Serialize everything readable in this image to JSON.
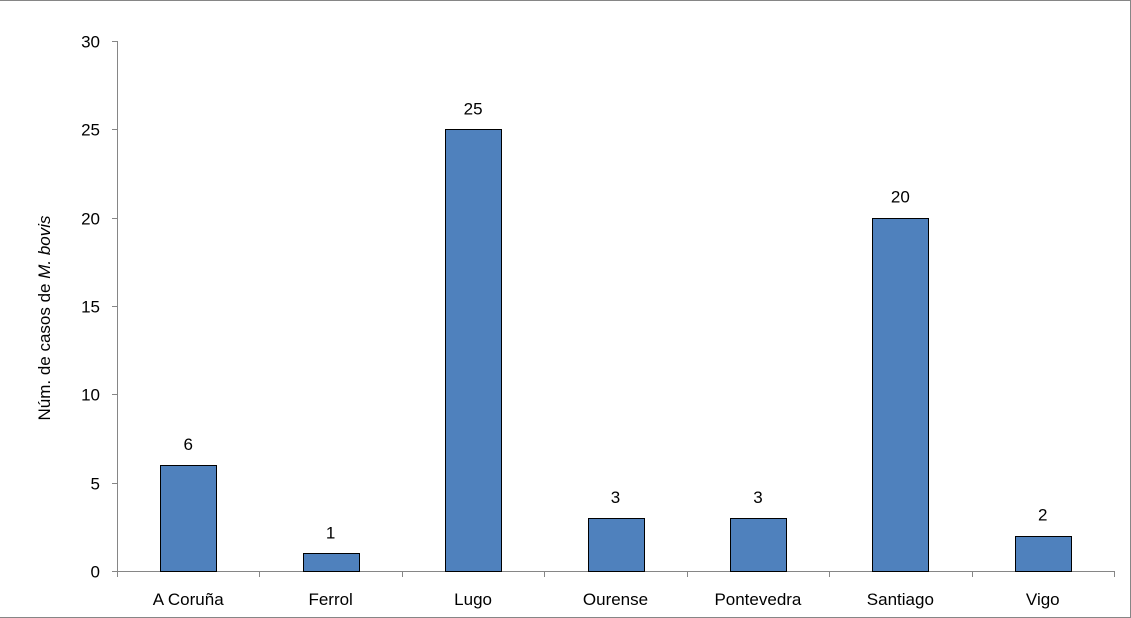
{
  "chart_data": {
    "type": "bar",
    "categories": [
      "A Coruña",
      "Ferrol",
      "Lugo",
      "Ourense",
      "Pontevedra",
      "Santiago",
      "Vigo"
    ],
    "values": [
      6,
      1,
      25,
      3,
      3,
      20,
      2
    ],
    "data_labels": [
      "6",
      "1",
      "25",
      "3",
      "3",
      "20",
      "2"
    ],
    "title": "",
    "xlabel": "",
    "ylabel": {
      "prefix": "Núm. de casos de ",
      "italic": "M. bovis"
    },
    "ylim": [
      0,
      30
    ],
    "yticks": [
      0,
      5,
      10,
      15,
      20,
      25,
      30
    ],
    "ytick_labels": [
      "0",
      "5",
      "10",
      "15",
      "20",
      "25",
      "30"
    ],
    "grid": false,
    "legend": "none",
    "bar_color": "#4f81bd",
    "bar_edge_color": "#000000",
    "axis_color": "#868686"
  }
}
